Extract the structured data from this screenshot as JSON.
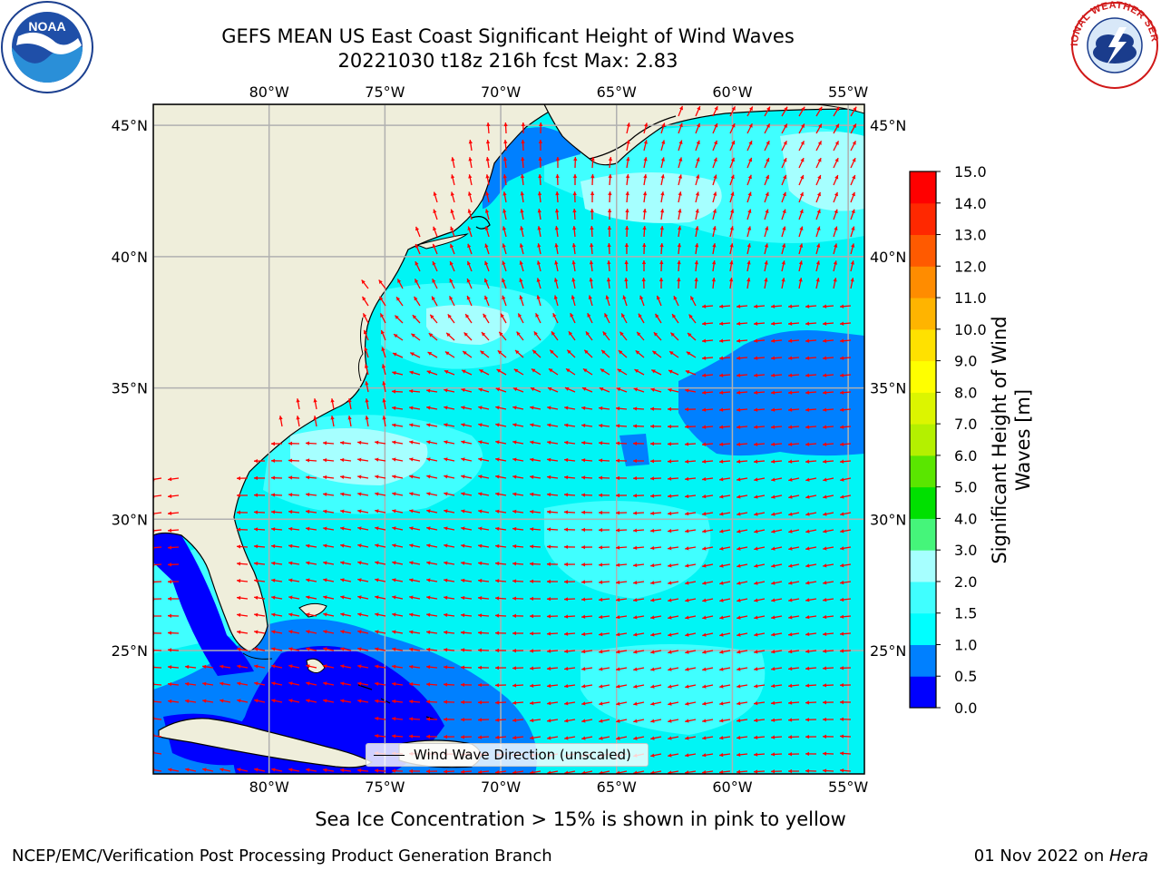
{
  "header": {
    "title_line1": "GEFS MEAN US East Coast Significant Height of Wind Waves",
    "title_line2": "20221030 t18z 216h fcst   Max: 2.83"
  },
  "logos": {
    "left": {
      "icon": "noaa-logo",
      "text": "NOAA"
    },
    "right": {
      "icon": "nws-logo",
      "ring_text": "NATIONAL WEATHER SERVICE"
    }
  },
  "map": {
    "lon_labels": [
      "80°W",
      "75°W",
      "70°W",
      "65°W",
      "60°W",
      "55°W"
    ],
    "lat_labels": [
      "45°N",
      "40°N",
      "35°N",
      "30°N",
      "25°N"
    ],
    "extent": {
      "lon_min": -85,
      "lon_max": -54.3,
      "lat_min": 20.3,
      "lat_max": 45.8
    },
    "grid": true,
    "colors": {
      "land": "#efeedb",
      "ocean_default": "#00f5f5",
      "arrow": "#ff0000",
      "coast": "#000000",
      "grid": "#b0b0b0"
    },
    "vector_field": "wind wave direction arrows (unscaled), predominantly easterly over the southern domain and southerly/southwesterly to the north"
  },
  "legend": {
    "label": "Wind Wave Direction (unscaled)"
  },
  "colorbar": {
    "title_line1": "Significant Height of Wind",
    "title_line2": "Waves [m]",
    "ticks": [
      "0.0",
      "0.5",
      "1.0",
      "1.5",
      "2.0",
      "3.0",
      "4.0",
      "5.0",
      "6.0",
      "7.0",
      "8.0",
      "9.0",
      "10.0",
      "11.0",
      "12.0",
      "13.0",
      "14.0",
      "15.0"
    ],
    "colors": [
      "#0000ff",
      "#0080ff",
      "#00ffff",
      "#40ffff",
      "#a6ffff",
      "#45f57a",
      "#00e000",
      "#5ae600",
      "#b4f000",
      "#dcf500",
      "#ffff00",
      "#ffe100",
      "#ffb400",
      "#ff8c00",
      "#ff5a00",
      "#ff2800",
      "#ff0000"
    ]
  },
  "ice_note": "Sea Ice Concentration > 15% is shown in pink to yellow",
  "footer": {
    "left": "NCEP/EMC/Verification Post Processing Product Generation Branch",
    "right_date": "01 Nov 2022 on ",
    "right_host": "Hera"
  }
}
